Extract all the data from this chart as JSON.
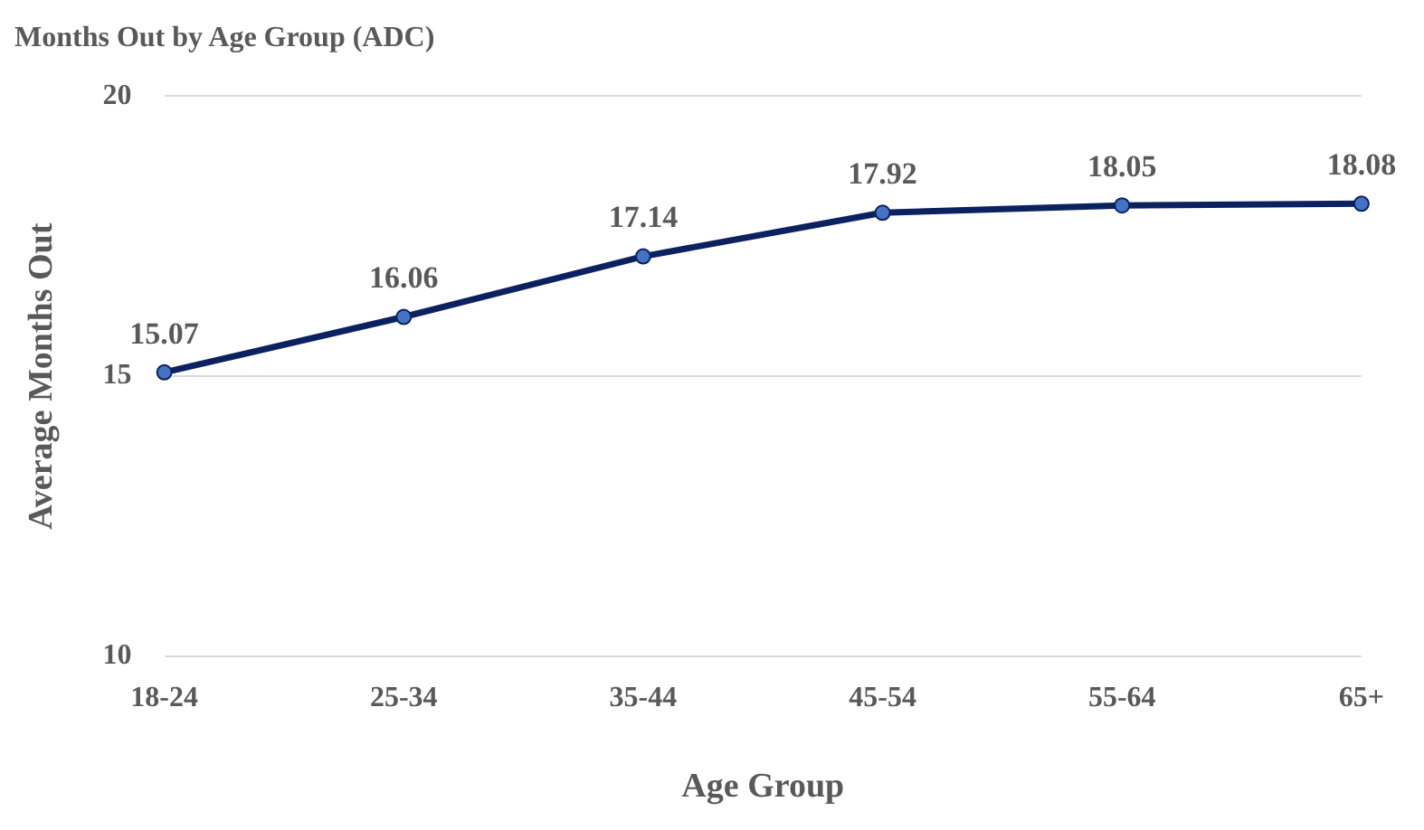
{
  "chart_data": {
    "type": "line",
    "title": "Months Out by Age Group (ADC)",
    "xlabel": "Age Group",
    "ylabel": "Average Months Out",
    "categories": [
      "18-24",
      "25-34",
      "35-44",
      "45-54",
      "55-64",
      "65+"
    ],
    "series": [
      {
        "color": "#0b2160",
        "values": [
          15.07,
          16.06,
          17.14,
          17.92,
          18.05,
          18.08
        ]
      }
    ],
    "ylim": [
      10,
      20
    ],
    "yticks": [
      10,
      15,
      20
    ],
    "grid": "y",
    "legend": false,
    "marker": "circle",
    "line_style": "solid",
    "data_labels": true
  }
}
